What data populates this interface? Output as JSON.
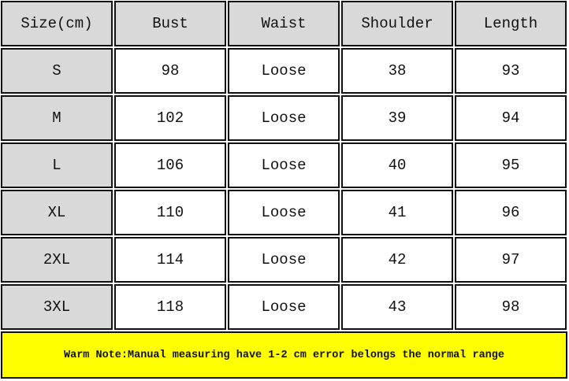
{
  "table": {
    "header": [
      "Size(cm)",
      "Bust",
      "Waist",
      "Shoulder",
      "Length"
    ],
    "rows": [
      [
        "S",
        98,
        "Loose",
        38,
        93
      ],
      [
        "M",
        102,
        "Loose",
        39,
        94
      ],
      [
        "L",
        106,
        "Loose",
        40,
        95
      ],
      [
        "XL",
        110,
        "Loose",
        41,
        96
      ],
      [
        "2XL",
        114,
        "Loose",
        42,
        97
      ],
      [
        "3XL",
        118,
        "Loose",
        43,
        98
      ]
    ]
  },
  "note": "Warm Note:Manual measuring have 1-2 cm error belongs the normal range"
}
